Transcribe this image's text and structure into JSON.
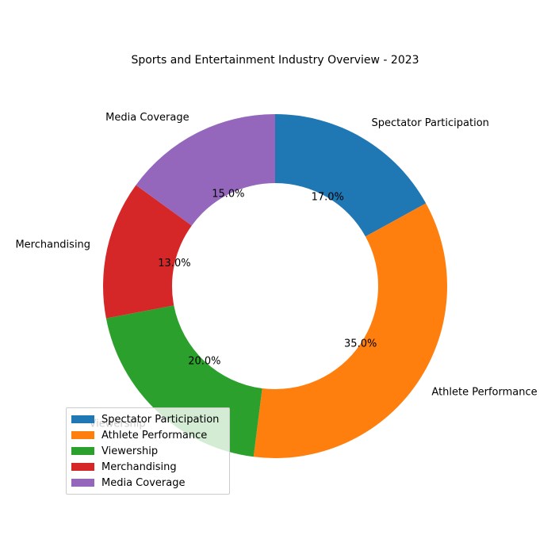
{
  "chart_data": {
    "type": "pie",
    "variant": "donut",
    "title": "Sports and Entertainment Industry Overview - 2023",
    "categories": [
      "Spectator Participation",
      "Athlete Performance",
      "Viewership",
      "Merchandising",
      "Media Coverage"
    ],
    "values": [
      17.0,
      35.0,
      20.0,
      13.0,
      15.0
    ],
    "value_labels": [
      "17.0%",
      "35.0%",
      "20.0%",
      "13.0%",
      "15.0%"
    ],
    "colors": [
      "#1f77b4",
      "#ff7f0e",
      "#2ca02c",
      "#d62728",
      "#9467bd"
    ],
    "start_angle_deg": 90,
    "direction": "clockwise",
    "legend_position": "lower-left"
  }
}
